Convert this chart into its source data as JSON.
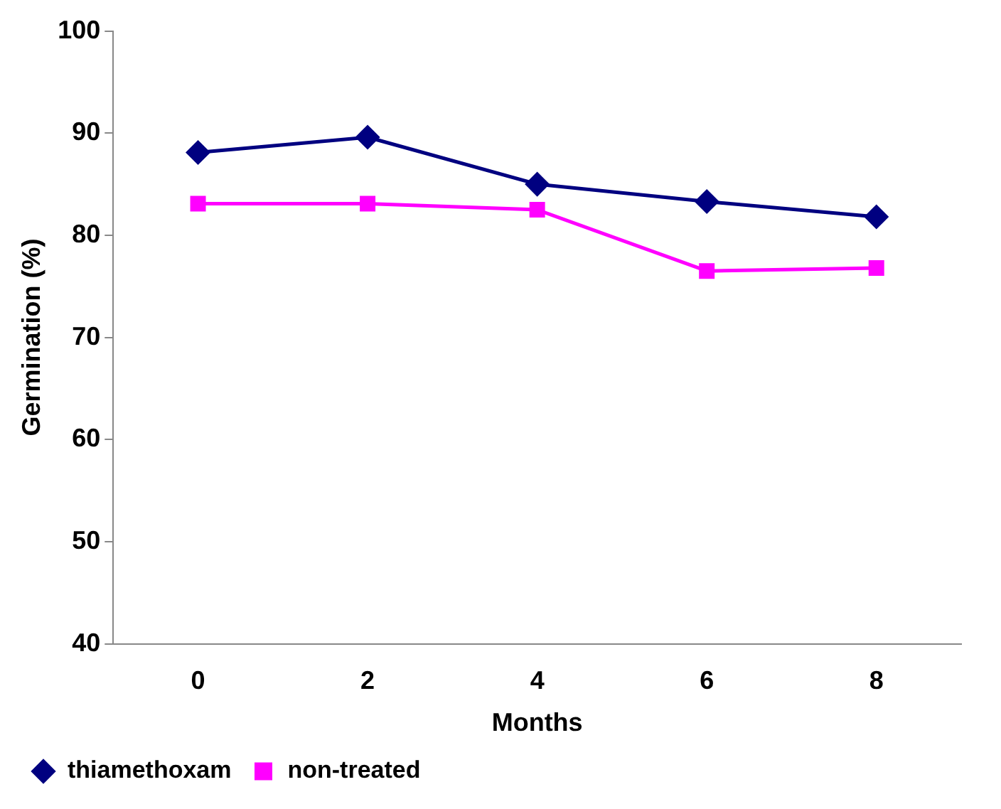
{
  "chart_data": {
    "type": "line",
    "xlabel": "Months",
    "ylabel": "Germination (%)",
    "categories": [
      "0",
      "2",
      "4",
      "6",
      "8"
    ],
    "series": [
      {
        "name": "thiamethoxam",
        "color": "#000080",
        "values": [
          88.1,
          89.6,
          85,
          83.3,
          81.8
        ],
        "marker": "diamond"
      },
      {
        "name": "non-treated",
        "color": "#ff00ff",
        "values": [
          83.1,
          83.1,
          82.5,
          76.5,
          76.8
        ],
        "marker": "square"
      }
    ],
    "ylim": [
      40,
      100
    ],
    "yticks": [
      40,
      50,
      60,
      70,
      80,
      90,
      100
    ],
    "grid": false,
    "legend": "bottom",
    "line_style": "solid"
  }
}
